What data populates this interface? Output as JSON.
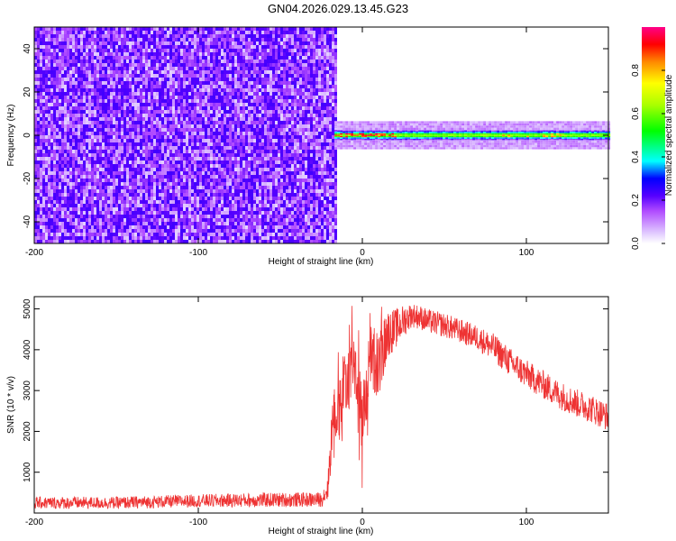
{
  "title": "GN04.2026.029.13.45.G23",
  "chart_data": [
    {
      "type": "heatmap",
      "xlabel": "Height of straight line (km)",
      "ylabel": "Frequency (Hz)",
      "xlim": [
        -200,
        150
      ],
      "ylim": [
        -50,
        50
      ],
      "xticks": [
        -200,
        -100,
        0,
        100
      ],
      "yticks": [
        -40,
        -20,
        0,
        20,
        40
      ],
      "colorbar": {
        "label": "Normalized spectral amplitude",
        "range": [
          0.0,
          1.0
        ],
        "ticks": [
          0.0,
          0.2,
          0.4,
          0.6,
          0.8
        ],
        "colormap": [
          "#ffffff",
          "#b04bff",
          "#5500ff",
          "#0000ff",
          "#00ffff",
          "#00ff00",
          "#ffff00",
          "#ff8800",
          "#ff0000",
          "#ff00aa"
        ]
      },
      "regions": [
        {
          "name": "noise",
          "x": [
            -200,
            -17
          ],
          "y": [
            -50,
            50
          ],
          "amplitude": [
            0.0,
            0.2
          ]
        },
        {
          "name": "signal-band",
          "x": [
            -17,
            150
          ],
          "y": [
            -2,
            2
          ],
          "amplitude": [
            0.3,
            1.0
          ]
        },
        {
          "name": "halo",
          "x": [
            -17,
            150
          ],
          "y": [
            -6,
            6
          ],
          "amplitude": [
            0.0,
            0.15
          ]
        }
      ]
    },
    {
      "type": "line",
      "xlabel": "Height of straight line (km)",
      "ylabel": "SNR (10 * v/v)",
      "xlim": [
        -200,
        150
      ],
      "ylim": [
        0,
        5300
      ],
      "xticks": [
        -200,
        -100,
        0,
        100
      ],
      "yticks": [
        1000,
        2000,
        3000,
        4000,
        5000
      ],
      "color": "#ee3333",
      "series": [
        {
          "x": [
            -200,
            -150,
            -100,
            -60,
            -25,
            -21,
            -19,
            -17,
            -15,
            -10,
            -5,
            0,
            5,
            10,
            15,
            20,
            25,
            30,
            35,
            40,
            50,
            60,
            70,
            80,
            90,
            100,
            110,
            120,
            130,
            140,
            150
          ],
          "y": [
            250,
            250,
            300,
            320,
            330,
            600,
            1800,
            2700,
            2500,
            3200,
            3800,
            2200,
            3800,
            3600,
            4400,
            4500,
            4700,
            4850,
            4800,
            4700,
            4600,
            4450,
            4300,
            4050,
            3700,
            3400,
            3150,
            2900,
            2700,
            2550,
            2350
          ],
          "spread": [
            150,
            150,
            160,
            180,
            180,
            300,
            700,
            900,
            900,
            900,
            900,
            900,
            900,
            800,
            600,
            500,
            400,
            300,
            300,
            300,
            300,
            300,
            300,
            350,
            350,
            350,
            350,
            350,
            350,
            350,
            350
          ]
        }
      ]
    }
  ]
}
